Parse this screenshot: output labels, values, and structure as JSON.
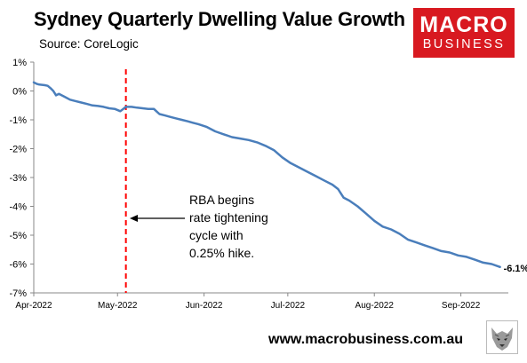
{
  "header": {
    "title": "Sydney Quarterly Dwelling Value Growth",
    "source": "Source: CoreLogic"
  },
  "logo": {
    "line1": "MACRO",
    "line2": "BUSINESS",
    "color": "#d81920"
  },
  "footer": {
    "url": "www.macrobusiness.com.au"
  },
  "chart_data": {
    "type": "line",
    "title": "Sydney Quarterly Dwelling Value Growth",
    "xlabel": "",
    "ylabel": "",
    "ylim": [
      -7,
      1
    ],
    "y_ticks": [
      "1%",
      "0%",
      "-1%",
      "-2%",
      "-3%",
      "-4%",
      "-5%",
      "-6%",
      "-7%"
    ],
    "y_tick_values": [
      1,
      0,
      -1,
      -2,
      -3,
      -4,
      -5,
      -6,
      -7
    ],
    "x_ticks": [
      "Apr-2022",
      "May-2022",
      "Jun-2022",
      "Jul-2022",
      "Aug-2022",
      "Sep-2022"
    ],
    "x_tick_dates": [
      "2022-04-01",
      "2022-05-01",
      "2022-06-01",
      "2022-07-01",
      "2022-08-01",
      "2022-09-01"
    ],
    "xlim": [
      "2022-04-01",
      "2022-09-18"
    ],
    "grid": false,
    "legend": "none",
    "line_color": "#4a7ebb",
    "series": [
      {
        "x": [
          "2022-04-01",
          "2022-04-02",
          "2022-04-03",
          "2022-04-05",
          "2022-04-06",
          "2022-04-07",
          "2022-04-08",
          "2022-04-09",
          "2022-04-10",
          "2022-04-12",
          "2022-04-14",
          "2022-04-16",
          "2022-04-18",
          "2022-04-20",
          "2022-04-22",
          "2022-04-24",
          "2022-04-26",
          "2022-04-28",
          "2022-04-30",
          "2022-05-02",
          "2022-05-04",
          "2022-05-06",
          "2022-05-08",
          "2022-05-10",
          "2022-05-12",
          "2022-05-14",
          "2022-05-16",
          "2022-05-18",
          "2022-05-20",
          "2022-05-22",
          "2022-05-24",
          "2022-05-26",
          "2022-05-28",
          "2022-05-30",
          "2022-06-02",
          "2022-06-05",
          "2022-06-08",
          "2022-06-11",
          "2022-06-14",
          "2022-06-17",
          "2022-06-20",
          "2022-06-23",
          "2022-06-26",
          "2022-06-29",
          "2022-07-02",
          "2022-07-05",
          "2022-07-08",
          "2022-07-11",
          "2022-07-14",
          "2022-07-17",
          "2022-07-19",
          "2022-07-21",
          "2022-07-23",
          "2022-07-26",
          "2022-07-29",
          "2022-08-01",
          "2022-08-04",
          "2022-08-07",
          "2022-08-10",
          "2022-08-13",
          "2022-08-16",
          "2022-08-19",
          "2022-08-22",
          "2022-08-25",
          "2022-08-28",
          "2022-08-31",
          "2022-09-03",
          "2022-09-06",
          "2022-09-09",
          "2022-09-12",
          "2022-09-15"
        ],
        "values": [
          0.3,
          0.25,
          0.22,
          0.2,
          0.18,
          0.1,
          0.0,
          -0.15,
          -0.1,
          -0.2,
          -0.3,
          -0.35,
          -0.4,
          -0.45,
          -0.5,
          -0.52,
          -0.55,
          -0.6,
          -0.62,
          -0.7,
          -0.55,
          -0.55,
          -0.58,
          -0.6,
          -0.62,
          -0.62,
          -0.8,
          -0.85,
          -0.9,
          -0.95,
          -1.0,
          -1.05,
          -1.1,
          -1.15,
          -1.25,
          -1.4,
          -1.5,
          -1.6,
          -1.65,
          -1.7,
          -1.78,
          -1.9,
          -2.05,
          -2.3,
          -2.5,
          -2.65,
          -2.8,
          -2.95,
          -3.1,
          -3.25,
          -3.4,
          -3.7,
          -3.8,
          -4.0,
          -4.25,
          -4.5,
          -4.7,
          -4.8,
          -4.95,
          -5.15,
          -5.25,
          -5.35,
          -5.45,
          -5.55,
          -5.6,
          -5.7,
          -5.75,
          -5.85,
          -5.95,
          -6.0,
          -6.1
        ]
      }
    ],
    "end_label": "-6.1%",
    "event_line": {
      "date": "2022-05-04",
      "color": "#ff0000",
      "style": "dashed"
    },
    "annotation": {
      "lines": [
        "RBA begins",
        "rate tightening",
        "cycle with",
        "0.25% hike."
      ]
    }
  }
}
